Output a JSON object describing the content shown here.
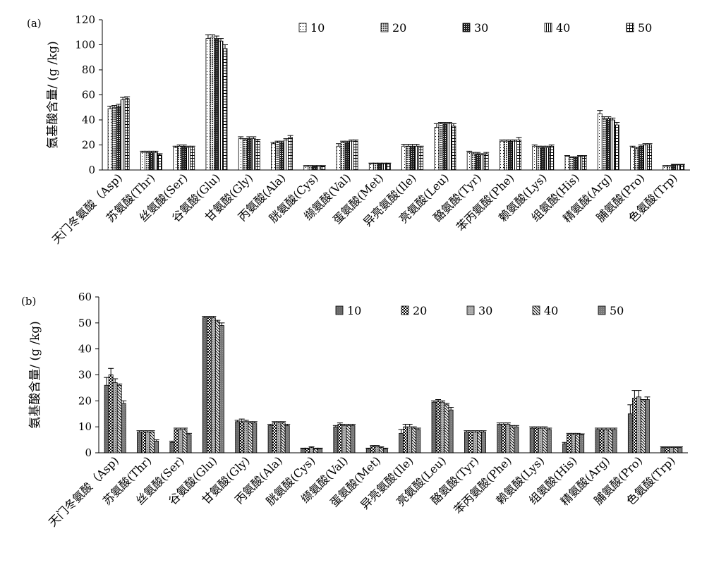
{
  "chart_data": [
    {
      "panel_label": "(a)",
      "type": "bar",
      "ylabel": "氨基酸含量/ (g /kg)",
      "ylim": [
        0,
        120
      ],
      "yticks": [
        0,
        20,
        40,
        60,
        80,
        100,
        120
      ],
      "grid": false,
      "legend_position": "top",
      "categories": [
        "天门冬氨酸（Asp)",
        "苏氨酸(Thr)",
        "丝氨酸(Ser)",
        "谷氨酸(Glu)",
        "甘氨酸(Gly)",
        "丙氨酸(Ala)",
        "胱氨酸(Cys)",
        "缬氨酸(Val)",
        "蛋氨酸(Met)",
        "异亮氨酸(Ile)",
        "亮氨酸(Leu)",
        "酪氨酸(Tyr)",
        "苯丙氨酸(Phe)",
        "赖氨酸(Lys)",
        "组氨酸(His)",
        "精氨酸(Arg)",
        "脯氨酸(Pro)",
        "色氨酸(Trp)"
      ],
      "series": [
        {
          "name": "10",
          "pattern": "dots-sparse",
          "values": [
            49,
            14,
            18,
            105,
            25,
            21,
            3,
            19,
            5,
            19,
            34,
            14,
            23,
            19,
            11,
            45,
            18,
            3
          ],
          "errors": [
            2,
            1,
            1,
            3,
            1.5,
            1,
            0.5,
            2,
            0.5,
            1.5,
            3,
            1,
            1,
            1,
            0.5,
            2.5,
            1,
            0.5
          ]
        },
        {
          "name": "20",
          "pattern": "dots-dense",
          "values": [
            50,
            14,
            19,
            106,
            24,
            22,
            3,
            22,
            5,
            19,
            37,
            13,
            23,
            18,
            10,
            41,
            17,
            3
          ],
          "errors": [
            1.5,
            1,
            1,
            2,
            1,
            1,
            0.5,
            1,
            0.5,
            1.5,
            1,
            1,
            1,
            1,
            0.5,
            1.5,
            1,
            0.5
          ]
        },
        {
          "name": "30",
          "pattern": "dots-dark",
          "values": [
            51,
            14,
            19,
            105,
            25,
            22,
            3,
            22,
            5,
            19,
            37,
            13,
            23,
            18,
            10,
            41,
            19,
            4
          ],
          "errors": [
            1.5,
            1,
            1,
            2,
            1.5,
            1,
            0.5,
            1,
            0.5,
            1.5,
            1,
            1,
            1,
            1,
            0.5,
            1.5,
            1,
            0.5
          ]
        },
        {
          "name": "40",
          "pattern": "vertical-lines",
          "values": [
            56,
            14,
            18,
            103,
            25,
            24,
            3,
            23,
            5,
            19,
            37,
            12,
            23,
            18,
            11,
            40,
            20,
            4
          ],
          "errors": [
            2,
            1,
            1,
            2,
            1.5,
            1,
            0.5,
            1,
            0.5,
            1.5,
            1,
            1,
            1,
            1,
            0.5,
            1.5,
            1,
            0.5
          ]
        },
        {
          "name": "50",
          "pattern": "grid",
          "values": [
            57,
            12,
            18,
            97,
            23,
            26,
            3,
            23,
            5,
            18,
            35,
            13,
            24,
            19,
            11,
            36,
            20,
            4
          ],
          "errors": [
            1.5,
            1,
            1,
            3,
            1.5,
            1.5,
            0.5,
            1,
            0.5,
            1,
            2,
            1,
            2,
            1,
            0.5,
            2,
            1,
            0.5
          ]
        }
      ]
    },
    {
      "panel_label": "(b)",
      "type": "bar",
      "ylabel": "氨基酸含量/ (g /kg)",
      "ylim": [
        0,
        60
      ],
      "yticks": [
        0,
        10,
        20,
        30,
        40,
        50,
        60
      ],
      "grid": false,
      "legend_position": "top",
      "categories": [
        "天门冬氨酸（Asp)",
        "苏氨酸(Thr)",
        "丝氨酸(Ser)",
        "谷氨酸(Glu)",
        "甘氨酸(Gly)",
        "丙氨酸(Ala)",
        "胱氨酸(Cys)",
        "缬氨酸(Val)",
        "蛋氨酸(Met)",
        "异亮氨酸(Ile)",
        "亮氨酸(Leu)",
        "酪氨酸(Tyr)",
        "苯丙氨酸(Phe)",
        "赖氨酸(Lys)",
        "组氨酸(His)",
        "精氨酸(Arg)",
        "脯氨酸(Pro)",
        "色氨酸(Trp)"
      ],
      "series": [
        {
          "name": "10",
          "pattern": "solid-dark",
          "values": [
            26,
            8,
            4,
            52,
            12,
            10.5,
            1.5,
            10,
            1.5,
            7.5,
            19.5,
            8,
            11,
            9.5,
            3.5,
            9,
            15,
            2
          ],
          "errors": [
            3,
            0.5,
            0.5,
            0.5,
            0.5,
            0.5,
            0.3,
            0.5,
            0.3,
            1.5,
            0.5,
            0.5,
            0.5,
            0.5,
            0.5,
            0.5,
            3.5,
            0.3
          ]
        },
        {
          "name": "20",
          "pattern": "checker",
          "values": [
            30,
            8,
            9,
            52,
            12,
            11.5,
            1.5,
            11,
            2.5,
            10,
            20,
            8,
            11,
            9.5,
            7,
            9,
            21,
            2
          ],
          "errors": [
            2.5,
            0.5,
            0.5,
            0.5,
            1,
            0.5,
            0.3,
            0.5,
            0.3,
            1,
            0.5,
            0.5,
            0.5,
            0.5,
            0.5,
            0.5,
            3,
            0.3
          ]
        },
        {
          "name": "30",
          "pattern": "dots",
          "values": [
            27,
            8,
            9,
            52,
            12,
            11.5,
            2,
            10.5,
            2.5,
            10,
            19.5,
            8,
            11,
            9.5,
            7,
            9,
            21.5,
            2
          ],
          "errors": [
            1.5,
            0.5,
            0.5,
            0.5,
            0.5,
            0.5,
            0.3,
            0.5,
            0.3,
            1,
            0.5,
            0.5,
            0.5,
            0.5,
            0.5,
            0.5,
            2.5,
            0.3
          ]
        },
        {
          "name": "40",
          "pattern": "diagonal",
          "values": [
            26,
            8,
            9,
            50.5,
            11.5,
            11.5,
            1.5,
            10.5,
            2,
            9.5,
            18.5,
            8,
            10,
            9.5,
            7,
            9,
            20,
            2
          ],
          "errors": [
            0.5,
            0.5,
            0.5,
            0.5,
            0.5,
            0.5,
            0.3,
            0.5,
            0.3,
            0.5,
            0.5,
            0.5,
            0.5,
            0.5,
            0.5,
            0.5,
            0.5,
            0.3
          ]
        },
        {
          "name": "50",
          "pattern": "solid",
          "values": [
            19,
            4.5,
            7,
            49,
            11.5,
            10.5,
            1.5,
            10.5,
            1.5,
            9,
            16.5,
            8,
            10,
            9,
            7,
            9,
            20.5,
            2
          ],
          "errors": [
            1,
            0.5,
            0.5,
            1,
            0.5,
            0.5,
            0.3,
            0.5,
            0.3,
            0.5,
            1,
            0.5,
            0.5,
            0.5,
            0.3,
            0.5,
            1,
            0.3
          ]
        }
      ]
    }
  ]
}
